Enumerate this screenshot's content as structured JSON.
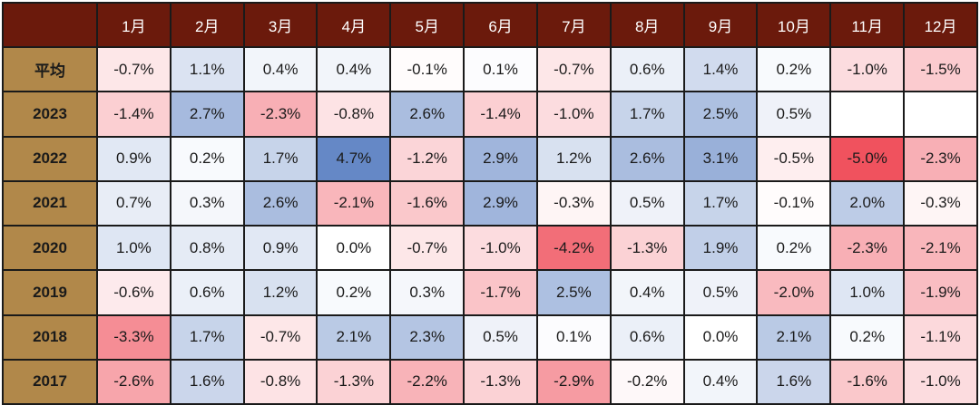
{
  "chart_data": {
    "type": "heatmap",
    "corner": "",
    "columns": [
      "1月",
      "2月",
      "3月",
      "4月",
      "5月",
      "6月",
      "7月",
      "8月",
      "9月",
      "10月",
      "11月",
      "12月"
    ],
    "rows": [
      "平均",
      "2023",
      "2022",
      "2021",
      "2020",
      "2019",
      "2018",
      "2017"
    ],
    "values": [
      [
        -0.7,
        1.1,
        0.4,
        0.4,
        -0.1,
        0.1,
        -0.7,
        0.6,
        1.4,
        0.2,
        -1.0,
        -1.5
      ],
      [
        -1.4,
        2.7,
        -2.3,
        -0.8,
        2.6,
        -1.4,
        -1.0,
        1.7,
        2.5,
        0.5,
        null,
        null
      ],
      [
        0.9,
        0.2,
        1.7,
        4.7,
        -1.2,
        2.9,
        1.2,
        2.6,
        3.1,
        -0.5,
        -5.0,
        -2.3
      ],
      [
        0.7,
        0.3,
        2.6,
        -2.1,
        -1.6,
        2.9,
        -0.3,
        0.5,
        1.7,
        -0.1,
        2.0,
        -0.3
      ],
      [
        1.0,
        0.8,
        0.9,
        0.0,
        -0.7,
        -1.0,
        -4.2,
        -1.3,
        1.9,
        0.2,
        -2.3,
        -2.1
      ],
      [
        -0.6,
        0.6,
        1.2,
        0.2,
        0.3,
        -1.7,
        2.5,
        0.4,
        0.5,
        -2.0,
        1.0,
        -1.9
      ],
      [
        -3.3,
        1.7,
        -0.7,
        2.1,
        2.3,
        0.5,
        0.1,
        0.6,
        0.0,
        2.1,
        0.2,
        -1.1
      ],
      [
        -2.6,
        1.6,
        -0.8,
        -1.3,
        -2.2,
        -1.3,
        -2.9,
        -0.2,
        0.4,
        1.6,
        -1.6,
        -1.0
      ]
    ],
    "value_suffix": "%",
    "color_scale": {
      "negative": "#f0525e",
      "zero": "#ffffff",
      "positive": "#5b80c2",
      "max_abs": 5.0
    },
    "header_color": "#6b1a0c",
    "row_label_color": "#b1884a"
  }
}
